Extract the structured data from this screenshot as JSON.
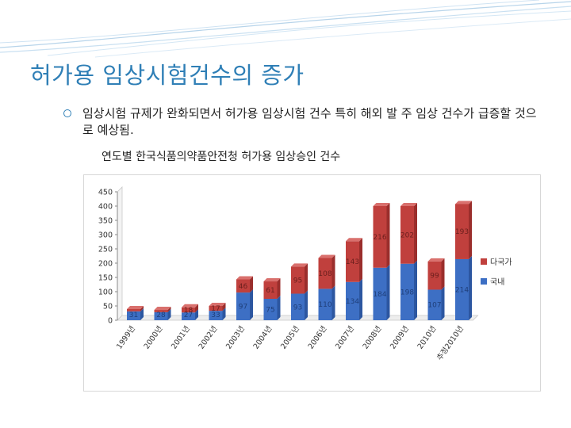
{
  "slide": {
    "title": "허가용 임상시험건수의 증가",
    "bullet": "임상시험 규제가 완화되면서 허가용 임상시험 건수 특히 해외 발 주 임상 건수가 급증할 것으로 예상됨.",
    "caption": "연도별 한국식품의약품안전청 허가용 임상승인 건수"
  },
  "colors": {
    "title": "#2f7fb6",
    "domestic": "#3d6fc4",
    "multinational": "#c0403d"
  },
  "chart_data": {
    "type": "bar",
    "stacked": true,
    "categories": [
      "1999년",
      "2000년",
      "2001년",
      "2002년",
      "2003년",
      "2004년",
      "2005년",
      "2006년",
      "2007년",
      "2008년",
      "2009년",
      "2010년",
      "추정2010년"
    ],
    "series": [
      {
        "name": "국내",
        "color": "#3d6fc4",
        "values": [
          31,
          28,
          27,
          33,
          97,
          75,
          93,
          110,
          134,
          184,
          198,
          107,
          214
        ]
      },
      {
        "name": "다국가",
        "color": "#c0403d",
        "values": [
          8,
          8,
          18,
          17,
          46,
          61,
          95,
          108,
          143,
          216,
          202,
          99,
          193
        ]
      }
    ],
    "data_labels": {
      "국내": [
        "31",
        "28",
        "27",
        "33",
        "97",
        "75",
        "93",
        "110",
        "134",
        "184",
        "198",
        "107",
        "214"
      ],
      "다국가": [
        "",
        "",
        "18",
        "17",
        "46",
        "61",
        "95",
        "108",
        "143",
        "216",
        "202",
        "99",
        "193"
      ]
    },
    "y_ticks": [
      0,
      50,
      100,
      150,
      200,
      250,
      300,
      350,
      400,
      450
    ],
    "ylim": [
      0,
      450
    ],
    "grid": false,
    "legend_position": "right",
    "title": "",
    "xlabel": "",
    "ylabel": ""
  }
}
